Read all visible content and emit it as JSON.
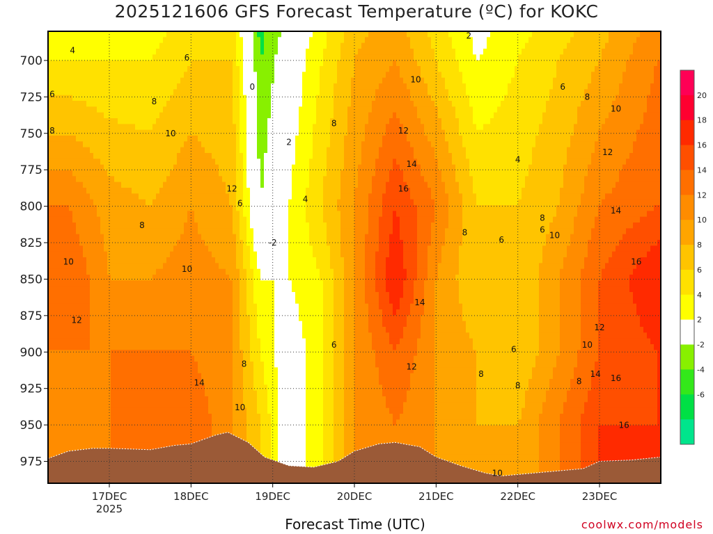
{
  "title": "2025121606 GFS Forecast Temperature (ºC) for KOKC",
  "credit": "coolwx.com/models",
  "chart_data": {
    "type": "heatmap",
    "title": "2025121606 GFS Forecast Temperature (ºC) for KOKC",
    "xlabel": "Forecast Time (UTC)",
    "ylabel": "",
    "y_axis": {
      "label": "",
      "ticks": [
        700,
        725,
        750,
        775,
        800,
        825,
        850,
        875,
        900,
        925,
        950,
        975
      ],
      "range": [
        680,
        990
      ],
      "orientation": "pressure-decreasing-upward"
    },
    "x_axis": {
      "ticks": [
        {
          "label": "17DEC",
          "sublabel": "2025",
          "day": 17
        },
        {
          "label": "18DEC",
          "sublabel": "",
          "day": 18
        },
        {
          "label": "19DEC",
          "sublabel": "",
          "day": 19
        },
        {
          "label": "20DEC",
          "sublabel": "",
          "day": 20
        },
        {
          "label": "21DEC",
          "sublabel": "",
          "day": 21
        },
        {
          "label": "22DEC",
          "sublabel": "",
          "day": 22
        },
        {
          "label": "23DEC",
          "sublabel": "",
          "day": 23
        }
      ],
      "range_days": [
        16.25,
        23.75
      ]
    },
    "grid": true,
    "colorbar": {
      "levels": [
        -6,
        -4,
        -2,
        2,
        4,
        6,
        8,
        10,
        12,
        14,
        16,
        18,
        20
      ],
      "colors": [
        "#00e58c",
        "#00e045",
        "#33e81a",
        "#88f000",
        "#ffffff",
        "#ffff00",
        "#ffe100",
        "#ffc400",
        "#ffa500",
        "#ff8c00",
        "#ff6f00",
        "#ff4f00",
        "#ff2a00",
        "#ff0030",
        "#ff0055"
      ],
      "ticks": [
        20,
        18,
        16,
        14,
        12,
        10,
        8,
        6,
        4,
        2,
        -2,
        -4,
        -6
      ]
    },
    "temperature_profile_samples": [
      {
        "day": 16.5,
        "p700": 4,
        "p800": 12,
        "p850": 14,
        "p900": 12,
        "p950": 10
      },
      {
        "day": 17.0,
        "p700": 4,
        "p800": 9,
        "p850": 10,
        "p900": 12,
        "p950": 12
      },
      {
        "day": 17.5,
        "p700": 4,
        "p800": 8,
        "p850": 10,
        "p900": 12,
        "p950": 12
      },
      {
        "day": 18.0,
        "p700": 6,
        "p800": 10,
        "p850": 11,
        "p900": 12,
        "p950": 14
      },
      {
        "day": 18.5,
        "p700": 6,
        "p800": 8,
        "p850": 10,
        "p900": 10,
        "p950": 10
      },
      {
        "day": 18.85,
        "p700": -4,
        "p800": -2,
        "p850": 2,
        "p900": 4,
        "p950": 6
      },
      {
        "day": 19.2,
        "p700": 0,
        "p800": 2,
        "p850": 2,
        "p900": 0,
        "p950": 0
      },
      {
        "day": 19.6,
        "p700": 4,
        "p800": 6,
        "p850": 4,
        "p900": 4,
        "p950": 4
      },
      {
        "day": 20.0,
        "p700": 8,
        "p800": 10,
        "p850": 10,
        "p900": 10,
        "p950": 10
      },
      {
        "day": 20.5,
        "p700": 10,
        "p800": 16,
        "p850": 18,
        "p900": 14,
        "p950": 12
      },
      {
        "day": 21.0,
        "p700": 6,
        "p800": 12,
        "p850": 10,
        "p900": 10,
        "p950": 10
      },
      {
        "day": 21.5,
        "p700": 2,
        "p800": 6,
        "p850": 6,
        "p900": 8,
        "p950": 8
      },
      {
        "day": 22.0,
        "p700": 4,
        "p800": 6,
        "p850": 6,
        "p900": 6,
        "p950": 8
      },
      {
        "day": 22.5,
        "p700": 6,
        "p800": 8,
        "p850": 10,
        "p900": 10,
        "p950": 12
      },
      {
        "day": 23.0,
        "p700": 8,
        "p800": 12,
        "p850": 14,
        "p900": 14,
        "p950": 16
      },
      {
        "day": 23.7,
        "p700": 12,
        "p800": 14,
        "p850": 18,
        "p900": 16,
        "p950": 16
      }
    ],
    "contour_labels": [
      {
        "text": "4",
        "day": 16.55,
        "p": 695
      },
      {
        "text": "6",
        "day": 17.95,
        "p": 700
      },
      {
        "text": "6",
        "day": 16.3,
        "p": 725
      },
      {
        "text": "8",
        "day": 17.55,
        "p": 730
      },
      {
        "text": "8",
        "day": 16.3,
        "p": 750
      },
      {
        "text": "10",
        "day": 17.75,
        "p": 752
      },
      {
        "text": "12",
        "day": 18.5,
        "p": 790
      },
      {
        "text": "6",
        "day": 18.6,
        "p": 800
      },
      {
        "text": "8",
        "day": 17.4,
        "p": 815
      },
      {
        "text": "10",
        "day": 16.5,
        "p": 840
      },
      {
        "text": "10",
        "day": 17.95,
        "p": 845
      },
      {
        "text": "12",
        "day": 16.6,
        "p": 880
      },
      {
        "text": "14",
        "day": 18.1,
        "p": 923
      },
      {
        "text": "8",
        "day": 18.65,
        "p": 910
      },
      {
        "text": "10",
        "day": 18.6,
        "p": 940
      },
      {
        "text": "0",
        "day": 18.75,
        "p": 720
      },
      {
        "text": "2",
        "day": 19.2,
        "p": 758
      },
      {
        "text": "-2",
        "day": 19.0,
        "p": 827
      },
      {
        "text": "4",
        "day": 19.4,
        "p": 797
      },
      {
        "text": "8",
        "day": 19.75,
        "p": 745
      },
      {
        "text": "6",
        "day": 19.75,
        "p": 897
      },
      {
        "text": "10",
        "day": 20.75,
        "p": 715
      },
      {
        "text": "12",
        "day": 20.6,
        "p": 750
      },
      {
        "text": "14",
        "day": 20.7,
        "p": 773
      },
      {
        "text": "16",
        "day": 20.6,
        "p": 790
      },
      {
        "text": "14",
        "day": 20.8,
        "p": 868
      },
      {
        "text": "12",
        "day": 20.7,
        "p": 912
      },
      {
        "text": "8",
        "day": 21.35,
        "p": 820
      },
      {
        "text": "6",
        "day": 21.8,
        "p": 825
      },
      {
        "text": "2",
        "day": 21.4,
        "p": 685
      },
      {
        "text": "4",
        "day": 22.0,
        "p": 770
      },
      {
        "text": "6",
        "day": 22.55,
        "p": 720
      },
      {
        "text": "8",
        "day": 22.85,
        "p": 727
      },
      {
        "text": "10",
        "day": 23.2,
        "p": 735
      },
      {
        "text": "12",
        "day": 23.1,
        "p": 765
      },
      {
        "text": "8",
        "day": 22.3,
        "p": 810
      },
      {
        "text": "6",
        "day": 22.3,
        "p": 818
      },
      {
        "text": "10",
        "day": 22.45,
        "p": 822
      },
      {
        "text": "14",
        "day": 23.2,
        "p": 805
      },
      {
        "text": "16",
        "day": 23.45,
        "p": 840
      },
      {
        "text": "12",
        "day": 23.0,
        "p": 885
      },
      {
        "text": "10",
        "day": 22.85,
        "p": 897
      },
      {
        "text": "14",
        "day": 22.95,
        "p": 917
      },
      {
        "text": "16",
        "day": 23.2,
        "p": 920
      },
      {
        "text": "8",
        "day": 22.75,
        "p": 922
      },
      {
        "text": "6",
        "day": 21.95,
        "p": 900
      },
      {
        "text": "8",
        "day": 21.55,
        "p": 917
      },
      {
        "text": "8",
        "day": 22.0,
        "p": 925
      },
      {
        "text": "16",
        "day": 23.3,
        "p": 952
      },
      {
        "text": "10",
        "day": 21.75,
        "p": 985
      }
    ]
  }
}
